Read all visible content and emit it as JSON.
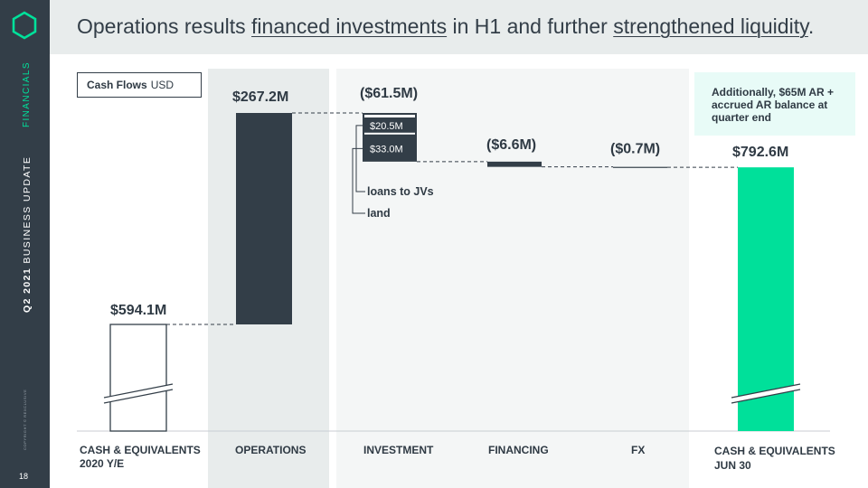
{
  "sidebar": {
    "section": "FINANCIALS",
    "report_bold": "Q2 2021",
    "report_rest": " BUSINESS UPDATE",
    "copyright": "COPYRIGHT © REXCLUSIVE",
    "page_number": "18"
  },
  "header": {
    "title_part1": "Operations results ",
    "title_link1": "financed investments",
    "title_part2": " in H1 and further ",
    "title_link2": "strengthened liquidity",
    "title_part3": "."
  },
  "legend": {
    "label": "Cash Flows",
    "unit": "USD"
  },
  "note": "Additionally, $65M AR + accrued AR balance at quarter end",
  "colors": {
    "sidebar": "#333e48",
    "accent": "#00e09a",
    "bar_dark": "#333e48",
    "header_bg": "#e8ecec",
    "note_bg": "#e8fbf7"
  },
  "chart_data": {
    "type": "waterfall",
    "unit": "USD",
    "y_axis": "broken",
    "categories": [
      "CASH & EQUIVALENTS 2020 Y/E",
      "OPERATIONS",
      "INVESTMENT",
      "FINANCING",
      "FX",
      "CASH & EQUIVALENTS JUN 30"
    ],
    "steps": [
      {
        "category": "CASH & EQUIVALENTS 2020 Y/E",
        "label_line1": "CASH & EQUIVALENTS",
        "label_line2": "2020 Y/E",
        "kind": "total",
        "value": 594.1,
        "value_label": "$594.1M"
      },
      {
        "category": "OPERATIONS",
        "label_line1": "OPERATIONS",
        "label_line2": "",
        "kind": "delta",
        "value": 267.2,
        "value_label": "$267.2M"
      },
      {
        "category": "INVESTMENT",
        "label_line1": "INVESTMENT",
        "label_line2": "",
        "kind": "delta",
        "value": -61.5,
        "value_label": "($61.5M)",
        "components": [
          {
            "name": "loans to JVs",
            "value": -20.5,
            "value_label": "$20.5M"
          },
          {
            "name": "land",
            "value": -33.0,
            "value_label": "$33.0M"
          }
        ]
      },
      {
        "category": "FINANCING",
        "label_line1": "FINANCING",
        "label_line2": "",
        "kind": "delta",
        "value": -6.6,
        "value_label": "($6.6M)"
      },
      {
        "category": "FX",
        "label_line1": "FX",
        "label_line2": "",
        "kind": "delta",
        "value": -0.7,
        "value_label": "($0.7M)"
      },
      {
        "category": "CASH & EQUIVALENTS JUN 30",
        "label_line1": "CASH & EQUIVALENTS",
        "label_line2": "JUN 30",
        "kind": "total",
        "value": 792.6,
        "value_label": "$792.6M"
      }
    ],
    "axis_break_on_totals": true
  }
}
